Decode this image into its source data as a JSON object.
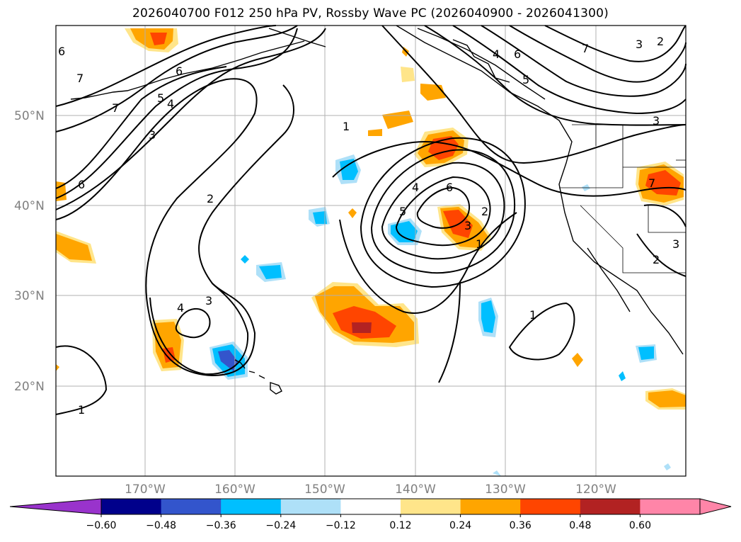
{
  "title": "2026040700 F012 250 hPa PV, Rossby Wave PC (2026040900 - 2026041300)",
  "lat_labels": [
    "50°N",
    "40°N",
    "30°N",
    "20°N"
  ],
  "lon_labels": [
    "170°W",
    "160°W",
    "150°W",
    "140°W",
    "130°W",
    "120°W"
  ],
  "contour_levels": [
    "1",
    "2",
    "3",
    "4",
    "5",
    "6",
    "7"
  ],
  "colorbar": {
    "tick_labels": [
      "−0.60",
      "−0.48",
      "−0.36",
      "−0.24",
      "−0.12",
      "0.12",
      "0.24",
      "0.36",
      "0.48",
      "0.60"
    ],
    "colors": [
      "#9933cc",
      "#00008b",
      "#3355cc",
      "#00bfff",
      "#aee0f8",
      "#ffffff",
      "#ffe58a",
      "#ffa500",
      "#ff4500",
      "#b22222",
      "#ff85a8",
      "#ff85a8"
    ]
  },
  "map": {
    "projection": "lat-lon",
    "lat_range": [
      "10°N",
      "60°N"
    ],
    "lon_range": [
      "180°W",
      "110°W"
    ],
    "grid": true,
    "fields": [
      "250 hPa PV contours (black)",
      "Rossby Wave PC shading"
    ]
  }
}
